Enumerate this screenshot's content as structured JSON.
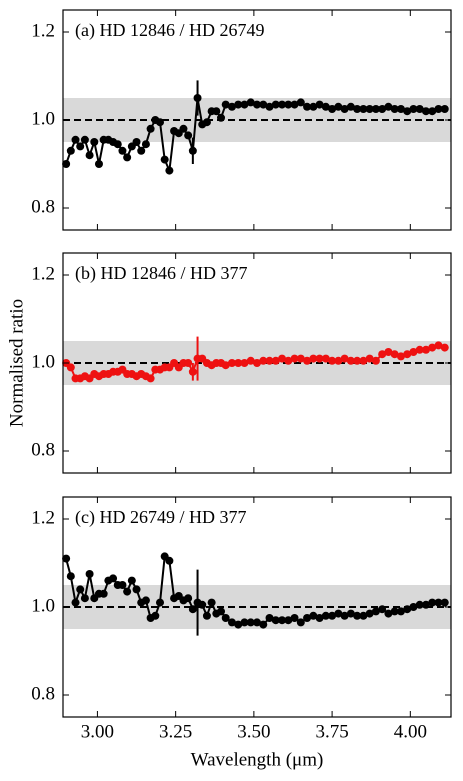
{
  "chart_data": [
    {
      "type": "line",
      "annotation": "(a) HD 12846 / HD 26749",
      "show_xtick_labels": false,
      "band": [
        0.95,
        1.05
      ],
      "reference_line": 1.0,
      "xlim": [
        2.89,
        4.13
      ],
      "xticks": [
        3,
        3.25,
        3.5,
        3.75,
        4
      ],
      "ylim": [
        0.75,
        1.25
      ],
      "yticks": [
        0.8,
        {
          "value": 1,
          "label": "1.0"
        },
        1.2
      ],
      "series": [
        {
          "color": "#000000",
          "x": [
            2.9,
            2.915,
            2.93,
            2.945,
            2.96,
            2.975,
            2.99,
            3.005,
            3.02,
            3.035,
            3.05,
            3.065,
            3.08,
            3.095,
            3.11,
            3.125,
            3.14,
            3.155,
            3.17,
            3.185,
            3.2,
            3.215,
            3.23,
            3.245,
            3.26,
            3.275,
            3.29,
            3.305,
            3.32,
            3.335,
            3.35,
            3.365,
            3.38,
            3.395,
            3.41,
            3.43,
            3.45,
            3.47,
            3.49,
            3.51,
            3.53,
            3.55,
            3.57,
            3.59,
            3.61,
            3.63,
            3.65,
            3.67,
            3.69,
            3.71,
            3.73,
            3.75,
            3.77,
            3.79,
            3.81,
            3.83,
            3.85,
            3.87,
            3.89,
            3.91,
            3.93,
            3.95,
            3.97,
            3.99,
            4.01,
            4.03,
            4.05,
            4.07,
            4.09,
            4.11
          ],
          "values": [
            0.9,
            0.93,
            0.955,
            0.94,
            0.955,
            0.92,
            0.95,
            0.9,
            0.955,
            0.955,
            0.95,
            0.945,
            0.93,
            0.915,
            0.94,
            0.95,
            0.93,
            0.945,
            0.98,
            1.0,
            0.995,
            0.91,
            0.885,
            0.975,
            0.97,
            0.98,
            0.965,
            0.93,
            1.05,
            0.99,
            0.995,
            1.02,
            1.02,
            1.005,
            1.035,
            1.03,
            1.035,
            1.035,
            1.04,
            1.035,
            1.035,
            1.03,
            1.035,
            1.035,
            1.035,
            1.035,
            1.04,
            1.03,
            1.03,
            1.035,
            1.03,
            1.025,
            1.03,
            1.025,
            1.03,
            1.025,
            1.025,
            1.025,
            1.025,
            1.025,
            1.03,
            1.025,
            1.025,
            1.02,
            1.025,
            1.025,
            1.02,
            1.02,
            1.025,
            1.025
          ],
          "errors": [
            null,
            null,
            null,
            null,
            null,
            null,
            null,
            null,
            null,
            null,
            null,
            null,
            null,
            null,
            null,
            null,
            null,
            null,
            null,
            null,
            null,
            null,
            null,
            null,
            null,
            null,
            null,
            0.03,
            0.04,
            null,
            null,
            null,
            null,
            null,
            null,
            null,
            null,
            null,
            null,
            null,
            null,
            null,
            null,
            null,
            null,
            null,
            null,
            null,
            null,
            null,
            null,
            null,
            null,
            null,
            null,
            null,
            null,
            null,
            null,
            null,
            null,
            null,
            null,
            null,
            null,
            null,
            null,
            null,
            null,
            null
          ]
        }
      ]
    },
    {
      "type": "line",
      "annotation": "(b) HD 12846 / HD 377",
      "ylabel": "Normalised ratio",
      "show_xtick_labels": false,
      "band": [
        0.95,
        1.05
      ],
      "reference_line": 1.0,
      "xlim": [
        2.89,
        4.13
      ],
      "xticks": [
        3,
        3.25,
        3.5,
        3.75,
        4
      ],
      "ylim": [
        0.75,
        1.25
      ],
      "yticks": [
        0.8,
        {
          "value": 1,
          "label": "1.0"
        },
        1.2
      ],
      "series": [
        {
          "color": "#ee1111",
          "x": [
            2.9,
            2.915,
            2.93,
            2.945,
            2.96,
            2.975,
            2.99,
            3.005,
            3.02,
            3.035,
            3.05,
            3.065,
            3.08,
            3.095,
            3.11,
            3.125,
            3.14,
            3.155,
            3.17,
            3.185,
            3.2,
            3.215,
            3.23,
            3.245,
            3.26,
            3.275,
            3.29,
            3.305,
            3.32,
            3.335,
            3.35,
            3.365,
            3.38,
            3.395,
            3.41,
            3.43,
            3.45,
            3.47,
            3.49,
            3.51,
            3.53,
            3.55,
            3.57,
            3.59,
            3.61,
            3.63,
            3.65,
            3.67,
            3.69,
            3.71,
            3.73,
            3.75,
            3.77,
            3.79,
            3.81,
            3.83,
            3.85,
            3.87,
            3.89,
            3.91,
            3.93,
            3.95,
            3.97,
            3.99,
            4.01,
            4.03,
            4.05,
            4.07,
            4.09,
            4.11
          ],
          "values": [
            1.0,
            0.99,
            0.965,
            0.965,
            0.97,
            0.965,
            0.975,
            0.97,
            0.975,
            0.975,
            0.98,
            0.98,
            0.985,
            0.975,
            0.975,
            0.97,
            0.975,
            0.97,
            0.965,
            0.985,
            0.985,
            0.99,
            0.99,
            1.0,
            0.99,
            1.0,
            1.0,
            0.98,
            1.01,
            1.01,
            1.0,
            0.995,
            1.0,
            1.0,
            0.995,
            1.0,
            1.0,
            1.0,
            1.005,
            1.0,
            1.005,
            1.005,
            1.005,
            1.01,
            1.005,
            1.01,
            1.01,
            1.005,
            1.01,
            1.01,
            1.01,
            1.005,
            1.005,
            1.01,
            1.005,
            1.005,
            1.005,
            1.01,
            1.005,
            1.02,
            1.025,
            1.02,
            1.015,
            1.02,
            1.025,
            1.03,
            1.03,
            1.035,
            1.04,
            1.035
          ],
          "errors": [
            null,
            null,
            null,
            null,
            null,
            null,
            null,
            null,
            null,
            null,
            null,
            null,
            null,
            null,
            null,
            null,
            null,
            null,
            null,
            null,
            null,
            null,
            null,
            null,
            null,
            null,
            null,
            0.02,
            0.05,
            null,
            null,
            null,
            null,
            null,
            null,
            null,
            null,
            null,
            null,
            null,
            null,
            null,
            null,
            null,
            null,
            null,
            null,
            null,
            null,
            null,
            null,
            null,
            null,
            null,
            null,
            null,
            null,
            null,
            null,
            null,
            null,
            null,
            null,
            null,
            null,
            null,
            null,
            null,
            null,
            null
          ]
        }
      ]
    },
    {
      "type": "line",
      "annotation": "(c) HD 26749 / HD 377",
      "xlabel": "Wavelength (μm)",
      "show_xtick_labels": true,
      "band": [
        0.95,
        1.05
      ],
      "reference_line": 1.0,
      "xlim": [
        2.89,
        4.13
      ],
      "xticks": [
        {
          "value": 3,
          "label": "3.00"
        },
        {
          "value": 3.25,
          "label": "3.25"
        },
        {
          "value": 3.5,
          "label": "3.50"
        },
        {
          "value": 3.75,
          "label": "3.75"
        },
        {
          "value": 4,
          "label": "4.00"
        }
      ],
      "ylim": [
        0.75,
        1.25
      ],
      "yticks": [
        0.8,
        {
          "value": 1,
          "label": "1.0"
        },
        1.2
      ],
      "series": [
        {
          "color": "#000000",
          "x": [
            2.9,
            2.915,
            2.93,
            2.945,
            2.96,
            2.975,
            2.99,
            3.005,
            3.02,
            3.035,
            3.05,
            3.065,
            3.08,
            3.095,
            3.11,
            3.125,
            3.14,
            3.155,
            3.17,
            3.185,
            3.2,
            3.215,
            3.23,
            3.245,
            3.26,
            3.275,
            3.29,
            3.305,
            3.32,
            3.335,
            3.35,
            3.365,
            3.38,
            3.395,
            3.41,
            3.43,
            3.45,
            3.47,
            3.49,
            3.51,
            3.53,
            3.55,
            3.57,
            3.59,
            3.61,
            3.63,
            3.65,
            3.67,
            3.69,
            3.71,
            3.73,
            3.75,
            3.77,
            3.79,
            3.81,
            3.83,
            3.85,
            3.87,
            3.89,
            3.91,
            3.93,
            3.95,
            3.97,
            3.99,
            4.01,
            4.03,
            4.05,
            4.07,
            4.09,
            4.11
          ],
          "values": [
            1.11,
            1.07,
            1.01,
            1.04,
            1.02,
            1.075,
            1.02,
            1.03,
            1.03,
            1.06,
            1.065,
            1.05,
            1.05,
            1.035,
            1.06,
            1.04,
            1.01,
            1.015,
            0.975,
            0.98,
            1.01,
            1.115,
            1.105,
            1.02,
            1.025,
            1.015,
            1.02,
            0.995,
            1.01,
            1.005,
            0.98,
            1.01,
            0.985,
            0.99,
            0.975,
            0.965,
            0.96,
            0.965,
            0.965,
            0.965,
            0.96,
            0.975,
            0.97,
            0.97,
            0.97,
            0.975,
            0.965,
            0.975,
            0.98,
            0.975,
            0.98,
            0.98,
            0.985,
            0.98,
            0.985,
            0.98,
            0.98,
            0.985,
            0.99,
            0.995,
            0.985,
            0.99,
            0.99,
            0.995,
            1.0,
            1.005,
            1.005,
            1.01,
            1.01,
            1.01
          ],
          "errors": [
            null,
            null,
            null,
            null,
            null,
            null,
            null,
            null,
            null,
            null,
            null,
            null,
            null,
            null,
            null,
            null,
            null,
            null,
            null,
            null,
            null,
            null,
            null,
            null,
            null,
            null,
            null,
            null,
            0.075,
            null,
            null,
            null,
            null,
            null,
            null,
            null,
            null,
            null,
            null,
            null,
            null,
            null,
            null,
            null,
            null,
            null,
            null,
            null,
            null,
            null,
            null,
            null,
            null,
            null,
            null,
            null,
            null,
            null,
            null,
            null,
            null,
            null,
            null,
            null,
            null,
            null,
            null,
            null,
            null,
            null
          ]
        }
      ]
    }
  ]
}
